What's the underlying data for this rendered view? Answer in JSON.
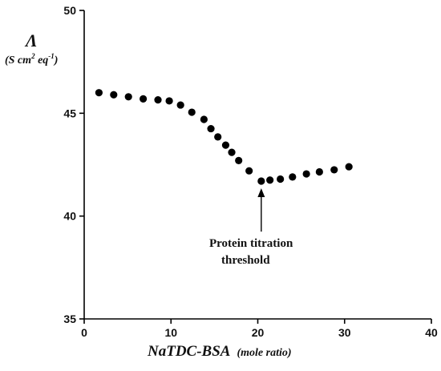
{
  "chart_data": {
    "type": "scatter",
    "title": "",
    "ylabel": {
      "symbol": "Λ",
      "unit_prefix": "(S cm",
      "unit_sup1": "2",
      "unit_mid": " eq",
      "unit_sup2": "-1",
      "unit_suffix": ")"
    },
    "xlabel": {
      "main": "NaTDC-BSA",
      "sub": "(mole ratio)"
    },
    "xlim": [
      0,
      40
    ],
    "ylim": [
      35,
      50
    ],
    "xticks": [
      "0",
      "10",
      "20",
      "30",
      "40"
    ],
    "yticks": [
      "35",
      "40",
      "45",
      "50"
    ],
    "grid": false,
    "series": [
      {
        "x": [
          1.7,
          3.4,
          5.1,
          6.8,
          8.5,
          9.8,
          11.1,
          12.4,
          13.8,
          14.6,
          15.4,
          16.3,
          17.0,
          17.8,
          19.0,
          20.4,
          21.4,
          22.6,
          24.0,
          25.6,
          27.1,
          28.8,
          30.5
        ],
        "y": [
          46.0,
          45.9,
          45.8,
          45.7,
          45.65,
          45.6,
          45.4,
          45.05,
          44.7,
          44.25,
          43.85,
          43.45,
          43.1,
          42.7,
          42.2,
          41.7,
          41.75,
          41.8,
          41.9,
          42.05,
          42.15,
          42.25,
          42.4
        ]
      }
    ],
    "annotations": [
      {
        "line1": "Protein titration",
        "line2": "threshold",
        "x": 20.4,
        "y": 41.7
      }
    ]
  }
}
